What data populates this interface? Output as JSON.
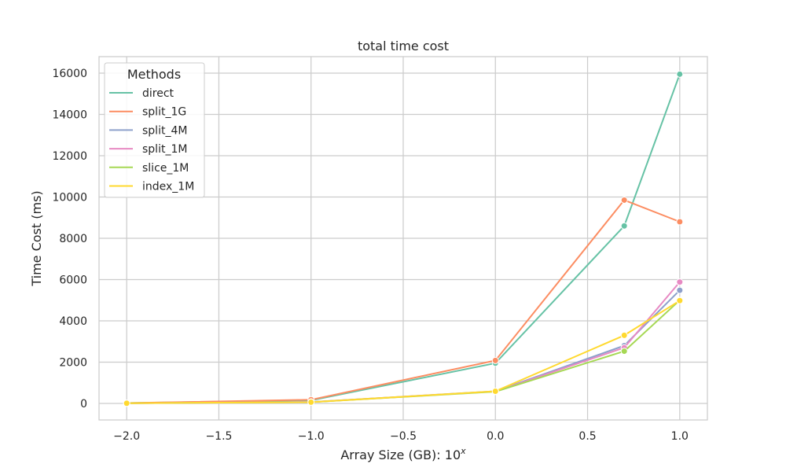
{
  "chart_data": {
    "type": "line",
    "title": "total time cost",
    "xlabel": "Array Size (GB): 10",
    "xlabel_superscript": "x",
    "ylabel": "Time Cost (ms)",
    "xlim": [
      -2.15,
      1.15
    ],
    "ylim": [
      -800,
      16800
    ],
    "xticks": [
      -2.0,
      -1.5,
      -1.0,
      -0.5,
      0.0,
      0.5,
      1.0
    ],
    "xtick_labels": [
      "−2.0",
      "−1.5",
      "−1.0",
      "−0.5",
      "0.0",
      "0.5",
      "1.0"
    ],
    "yticks": [
      0,
      2000,
      4000,
      6000,
      8000,
      10000,
      12000,
      14000,
      16000
    ],
    "ytick_labels": [
      "0",
      "2000",
      "4000",
      "6000",
      "8000",
      "10000",
      "12000",
      "14000",
      "16000"
    ],
    "grid": true,
    "legend_title": "Methods",
    "legend_position": "top-left",
    "x": [
      -2.0,
      -1.0,
      0.0,
      0.699,
      1.0
    ],
    "series": [
      {
        "name": "direct",
        "color": "#66c2a5",
        "values": [
          20,
          150,
          1950,
          8600,
          15950
        ]
      },
      {
        "name": "split_1G",
        "color": "#fc8d62",
        "values": [
          20,
          180,
          2080,
          9850,
          8800
        ]
      },
      {
        "name": "split_4M",
        "color": "#8da0cb",
        "values": [
          10,
          70,
          590,
          2800,
          5480
        ]
      },
      {
        "name": "split_1M",
        "color": "#e78ac3",
        "values": [
          10,
          70,
          580,
          2700,
          5880
        ]
      },
      {
        "name": "slice_1M",
        "color": "#a6d854",
        "values": [
          10,
          60,
          570,
          2530,
          5000
        ]
      },
      {
        "name": "index_1M",
        "color": "#ffd92f",
        "values": [
          10,
          60,
          590,
          3300,
          4980
        ]
      }
    ]
  }
}
